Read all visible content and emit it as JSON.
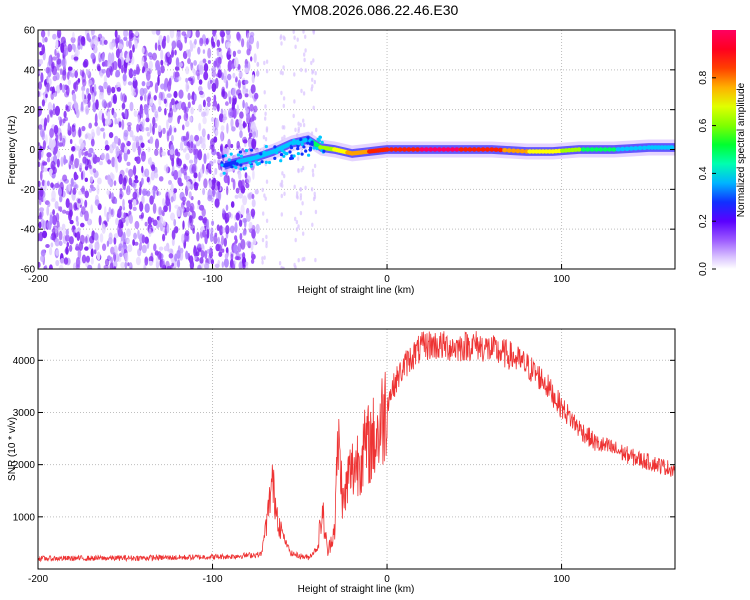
{
  "title": "YM08.2026.086.22.46.E30",
  "colors": {
    "snr_line": "#ee3333",
    "noise_dark": "#7a1ff0",
    "noise_light": "#d9c2ff",
    "colormap": [
      "#ffffff",
      "#e8d6ff",
      "#b07cff",
      "#7a1ff0",
      "#4b00ff",
      "#0040ff",
      "#00c8ff",
      "#00ff80",
      "#80ff00",
      "#ffff00",
      "#ff8000",
      "#ff0000",
      "#ff0060"
    ]
  },
  "chart_data": [
    {
      "type": "heatmap",
      "title": "YM08.2026.086.22.46.E30",
      "xlabel": "Height of straight line (km)",
      "ylabel": "Frequency (Hz)",
      "xlim": [
        -200,
        165
      ],
      "ylim": [
        -60,
        60
      ],
      "xticks": [
        -200,
        -100,
        0,
        100
      ],
      "yticks": [
        60,
        40,
        20,
        0,
        -20,
        -40,
        -60
      ],
      "colorbar": {
        "label": "Normalized spectral amplitude",
        "range": [
          0.0,
          1.0
        ],
        "ticks": [
          "0.0",
          "0.2",
          "0.4",
          "0.6",
          "0.8"
        ]
      },
      "noise_region_end_km": -78,
      "signal_track": [
        {
          "x": -93,
          "f": -8,
          "amp": 0.35
        },
        {
          "x": -85,
          "f": -6,
          "amp": 0.4
        },
        {
          "x": -75,
          "f": -4,
          "amp": 0.45
        },
        {
          "x": -65,
          "f": -1,
          "amp": 0.45
        },
        {
          "x": -55,
          "f": 3,
          "amp": 0.4
        },
        {
          "x": -45,
          "f": 5,
          "amp": 0.45
        },
        {
          "x": -38,
          "f": 1,
          "amp": 0.6
        },
        {
          "x": -30,
          "f": 0,
          "amp": 0.7
        },
        {
          "x": -20,
          "f": -2,
          "amp": 0.85
        },
        {
          "x": -10,
          "f": -1,
          "amp": 0.9
        },
        {
          "x": 0,
          "f": 0,
          "amp": 0.95
        },
        {
          "x": 20,
          "f": 0,
          "amp": 1.0
        },
        {
          "x": 40,
          "f": 0,
          "amp": 1.0
        },
        {
          "x": 60,
          "f": 0,
          "amp": 0.95
        },
        {
          "x": 80,
          "f": -1,
          "amp": 0.8
        },
        {
          "x": 95,
          "f": -1,
          "amp": 0.75
        },
        {
          "x": 110,
          "f": 0,
          "amp": 0.6
        },
        {
          "x": 130,
          "f": 0,
          "amp": 0.5
        },
        {
          "x": 150,
          "f": 1,
          "amp": 0.45
        },
        {
          "x": 165,
          "f": 1,
          "amp": 0.4
        }
      ]
    },
    {
      "type": "line",
      "xlabel": "Height of straight line (km)",
      "ylabel": "SNR (10 * v/v)",
      "xlim": [
        -200,
        165
      ],
      "ylim": [
        0,
        4600
      ],
      "xticks": [
        -200,
        -100,
        0,
        100
      ],
      "yticks": [
        1000,
        2000,
        3000,
        4000
      ],
      "series": [
        {
          "name": "SNR",
          "x": [
            -200,
            -150,
            -120,
            -90,
            -72,
            -68,
            -66,
            -62,
            -58,
            -55,
            -50,
            -45,
            -40,
            -37,
            -34,
            -30,
            -28,
            -25,
            -22,
            -18,
            -15,
            -10,
            -5,
            0,
            5,
            10,
            15,
            20,
            25,
            30,
            40,
            50,
            60,
            70,
            80,
            90,
            100,
            110,
            120,
            130,
            140,
            150,
            160,
            165
          ],
          "y": [
            200,
            210,
            220,
            240,
            280,
            1100,
            1700,
            900,
            500,
            300,
            250,
            220,
            400,
            1100,
            300,
            800,
            2500,
            1200,
            1800,
            2000,
            2200,
            2400,
            2600,
            3200,
            3600,
            3900,
            4100,
            4250,
            4300,
            4280,
            4250,
            4300,
            4200,
            4100,
            3900,
            3600,
            3100,
            2700,
            2400,
            2300,
            2150,
            2050,
            1950,
            1900
          ]
        }
      ]
    }
  ]
}
